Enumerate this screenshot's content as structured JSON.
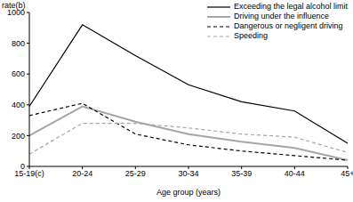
{
  "chart_data": {
    "type": "line",
    "y_label": "rate(b)",
    "x_label": "Age group (years)",
    "categories": [
      "15-19(c)",
      "20-24",
      "25-29",
      "30-34",
      "35-39",
      "40-44",
      "45+"
    ],
    "series": [
      {
        "name": "Exceeding the legal alcohol limit",
        "color": "#000000",
        "line_style": "solid",
        "values": [
          390,
          920,
          720,
          530,
          420,
          360,
          150
        ]
      },
      {
        "name": "Driving under the influence",
        "color": "#a6a6a6",
        "line_style": "solid",
        "values": [
          200,
          390,
          290,
          210,
          160,
          120,
          40
        ]
      },
      {
        "name": "Dangerous or negligent driving",
        "color": "#000000",
        "line_style": "dashed",
        "values": [
          330,
          410,
          210,
          140,
          100,
          70,
          40
        ]
      },
      {
        "name": "Speeding",
        "color": "#a6a6a6",
        "line_style": "dashed",
        "values": [
          80,
          280,
          280,
          250,
          210,
          190,
          90
        ]
      }
    ],
    "ylim": [
      0,
      1000
    ],
    "yticks": [
      0,
      200,
      400,
      600,
      800,
      1000
    ],
    "grid": false,
    "legend": "upper right"
  }
}
